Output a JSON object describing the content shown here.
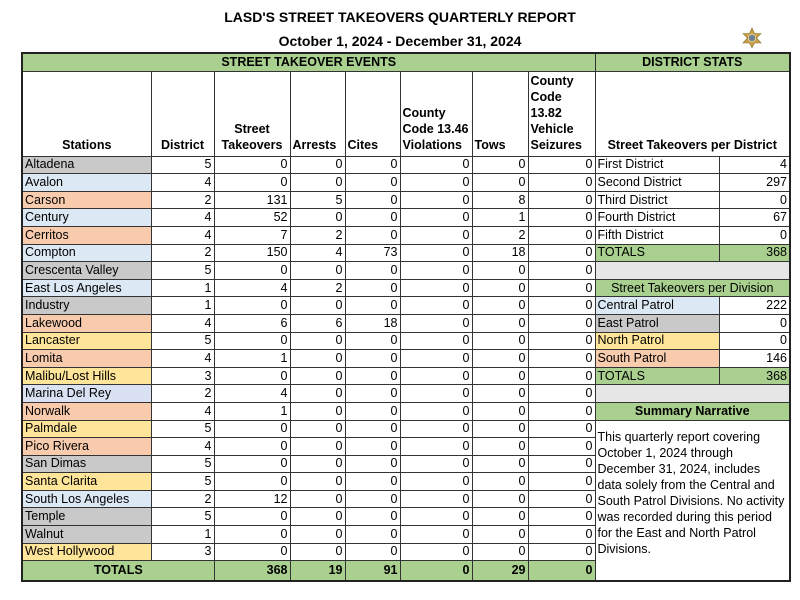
{
  "title": "LASD'S STREET TAKEOVERS QUARTERLY REPORT",
  "period": "October 1, 2024 - December 31, 2024",
  "colors": {
    "central": "#dce9f5",
    "east": "#c9c9c9",
    "north": "#ffe599",
    "south": "#f8cbad",
    "marina": "#d9e1f2",
    "header": "#a9d08e"
  },
  "events_header": "STREET TAKEOVER EVENTS",
  "stats_header": "DISTRICT STATS",
  "columns": [
    "Stations",
    "District",
    "Street Takeovers",
    "Arrests",
    "Cites",
    "County Code 13.46 Violations",
    "Tows",
    "County Code 13.82 Vehicle Seizures"
  ],
  "stations": [
    {
      "name": "Altadena",
      "division": "east",
      "values": [
        5,
        0,
        0,
        0,
        0,
        0,
        0
      ]
    },
    {
      "name": "Avalon",
      "division": "central",
      "values": [
        4,
        0,
        0,
        0,
        0,
        0,
        0
      ]
    },
    {
      "name": "Carson",
      "division": "south",
      "values": [
        2,
        131,
        5,
        0,
        0,
        8,
        0
      ]
    },
    {
      "name": "Century",
      "division": "central",
      "values": [
        4,
        52,
        0,
        0,
        0,
        1,
        0
      ]
    },
    {
      "name": "Cerritos",
      "division": "south",
      "values": [
        4,
        7,
        2,
        0,
        0,
        2,
        0
      ]
    },
    {
      "name": "Compton",
      "division": "central",
      "values": [
        2,
        150,
        4,
        73,
        0,
        18,
        0
      ]
    },
    {
      "name": "Crescenta Valley",
      "division": "east",
      "values": [
        5,
        0,
        0,
        0,
        0,
        0,
        0
      ]
    },
    {
      "name": "East Los Angeles",
      "division": "central",
      "values": [
        1,
        4,
        2,
        0,
        0,
        0,
        0
      ]
    },
    {
      "name": "Industry",
      "division": "east",
      "values": [
        1,
        0,
        0,
        0,
        0,
        0,
        0
      ]
    },
    {
      "name": "Lakewood",
      "division": "south",
      "values": [
        4,
        6,
        6,
        18,
        0,
        0,
        0
      ]
    },
    {
      "name": "Lancaster",
      "division": "north",
      "values": [
        5,
        0,
        0,
        0,
        0,
        0,
        0
      ]
    },
    {
      "name": "Lomita",
      "division": "south",
      "values": [
        4,
        1,
        0,
        0,
        0,
        0,
        0
      ]
    },
    {
      "name": "Malibu/Lost Hills",
      "division": "north",
      "values": [
        3,
        0,
        0,
        0,
        0,
        0,
        0
      ]
    },
    {
      "name": "Marina Del Rey",
      "division": "marina",
      "values": [
        2,
        4,
        0,
        0,
        0,
        0,
        0
      ]
    },
    {
      "name": "Norwalk",
      "division": "south",
      "values": [
        4,
        1,
        0,
        0,
        0,
        0,
        0
      ]
    },
    {
      "name": "Palmdale",
      "division": "north",
      "values": [
        5,
        0,
        0,
        0,
        0,
        0,
        0
      ]
    },
    {
      "name": "Pico Rivera",
      "division": "south",
      "values": [
        4,
        0,
        0,
        0,
        0,
        0,
        0
      ]
    },
    {
      "name": "San Dimas",
      "division": "east",
      "values": [
        5,
        0,
        0,
        0,
        0,
        0,
        0
      ]
    },
    {
      "name": "Santa Clarita",
      "division": "north",
      "values": [
        5,
        0,
        0,
        0,
        0,
        0,
        0
      ]
    },
    {
      "name": "South Los Angeles",
      "division": "central",
      "values": [
        2,
        12,
        0,
        0,
        0,
        0,
        0
      ]
    },
    {
      "name": "Temple",
      "division": "east",
      "values": [
        5,
        0,
        0,
        0,
        0,
        0,
        0
      ]
    },
    {
      "name": "Walnut",
      "division": "east",
      "values": [
        1,
        0,
        0,
        0,
        0,
        0,
        0
      ]
    },
    {
      "name": "West Hollywood",
      "division": "north",
      "values": [
        3,
        0,
        0,
        0,
        0,
        0,
        0
      ]
    }
  ],
  "totals": {
    "label": "TOTALS",
    "values": [
      368,
      19,
      91,
      0,
      29,
      0
    ]
  },
  "district_stats": {
    "title": "Street Takeovers per District",
    "rows": [
      {
        "label": "First District",
        "value": 4
      },
      {
        "label": "Second District",
        "value": 297
      },
      {
        "label": "Third District",
        "value": 0
      },
      {
        "label": "Fourth District",
        "value": 67
      },
      {
        "label": "Fifth District",
        "value": 0
      }
    ],
    "totals": {
      "label": "TOTALS",
      "value": 368
    }
  },
  "division_stats": {
    "title": "Street Takeovers per Division",
    "rows": [
      {
        "label": "Central Patrol",
        "value": 222,
        "division": "central"
      },
      {
        "label": "East Patrol",
        "value": 0,
        "division": "east"
      },
      {
        "label": "North Patrol",
        "value": 0,
        "division": "north"
      },
      {
        "label": "South Patrol",
        "value": 146,
        "division": "south"
      }
    ],
    "totals": {
      "label": "TOTALS",
      "value": 368
    }
  },
  "summary": {
    "title": "Summary Narrative",
    "text": "This quarterly report covering October 1, 2024 through December 31, 2024, includes data solely from the Central and South Patrol Divisions.  No activity was recorded during this period for the East and North Patrol Divisions."
  }
}
